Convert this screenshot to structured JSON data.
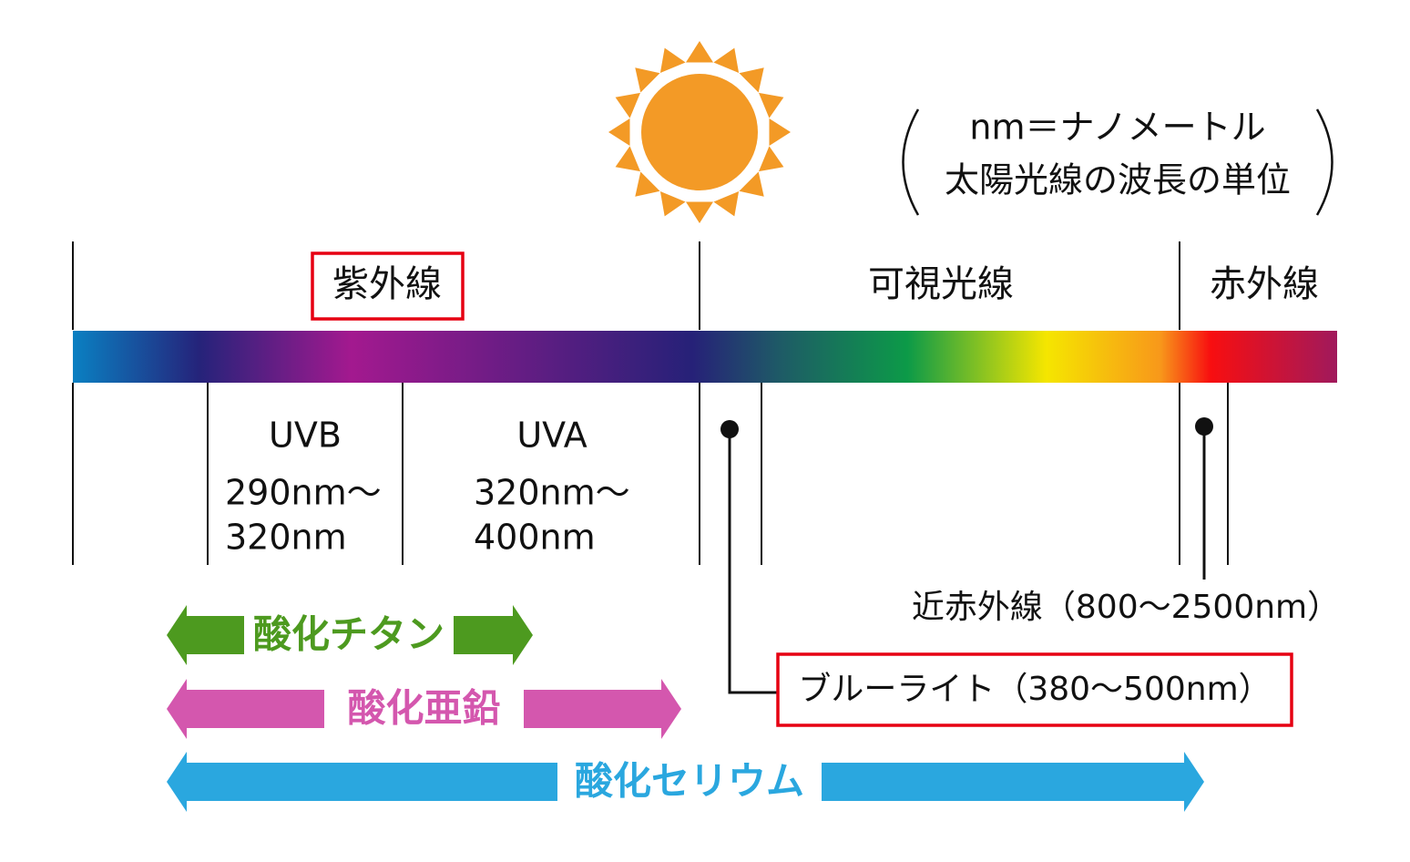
{
  "note": {
    "line1": "nm＝ナノメートル",
    "line2": "太陽光線の波長の単位"
  },
  "bands": {
    "uv": "紫外線",
    "visible": "可視光線",
    "ir": "赤外線"
  },
  "sub_bands": [
    {
      "name": "UVB",
      "range_from": "290nm～",
      "range_to": "320nm"
    },
    {
      "name": "UVA",
      "range_from": "320nm～",
      "range_to": "400nm"
    }
  ],
  "callouts": {
    "near_ir": "近赤外線（800～2500nm）",
    "blue_light": "ブルーライト（380～500nm）"
  },
  "blockers": [
    {
      "label": "酸化チタン"
    },
    {
      "label": "酸化亜鉛"
    },
    {
      "label": "酸化セリウム"
    }
  ]
}
